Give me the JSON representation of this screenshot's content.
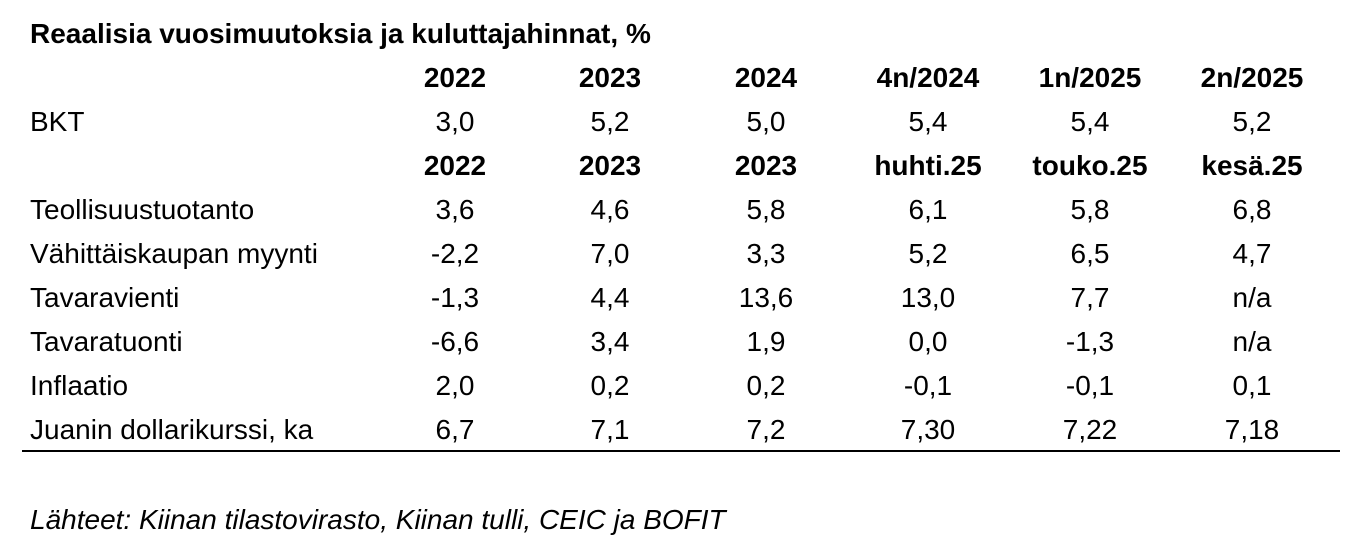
{
  "title": "Reaalisia vuosimuutoksia ja kuluttajahinnat, %",
  "header1": [
    "2022",
    "2023",
    "2024",
    "4n/2024",
    "1n/2025",
    "2n/2025"
  ],
  "gdp_row": {
    "label": "BKT",
    "values": [
      "3,0",
      "5,2",
      "5,0",
      "5,4",
      "5,4",
      "5,2"
    ]
  },
  "header2": [
    "2022",
    "2023",
    "2023",
    "huhti.25",
    "touko.25",
    "kesä.25"
  ],
  "rows": [
    {
      "label": "Teollisuustuotanto",
      "values": [
        "3,6",
        "4,6",
        "5,8",
        "6,1",
        "5,8",
        "6,8"
      ]
    },
    {
      "label": "Vähittäiskaupan myynti",
      "values": [
        "-2,2",
        "7,0",
        "3,3",
        "5,2",
        "6,5",
        "4,7"
      ]
    },
    {
      "label": "Tavaravienti",
      "values": [
        "-1,3",
        "4,4",
        "13,6",
        "13,0",
        "7,7",
        "n/a"
      ]
    },
    {
      "label": "Tavaratuonti",
      "values": [
        "-6,6",
        "3,4",
        "1,9",
        "0,0",
        "-1,3",
        "n/a"
      ]
    },
    {
      "label": "Inflaatio",
      "values": [
        "2,0",
        "0,2",
        "0,2",
        "-0,1",
        "-0,1",
        "0,1"
      ]
    },
    {
      "label": "Juanin dollarikurssi, ka",
      "values": [
        "6,7",
        "7,1",
        "7,2",
        "7,30",
        "7,22",
        "7,18"
      ]
    }
  ],
  "source": "Lähteet: Kiinan tilastovirasto, Kiinan tulli, CEIC ja BOFIT"
}
